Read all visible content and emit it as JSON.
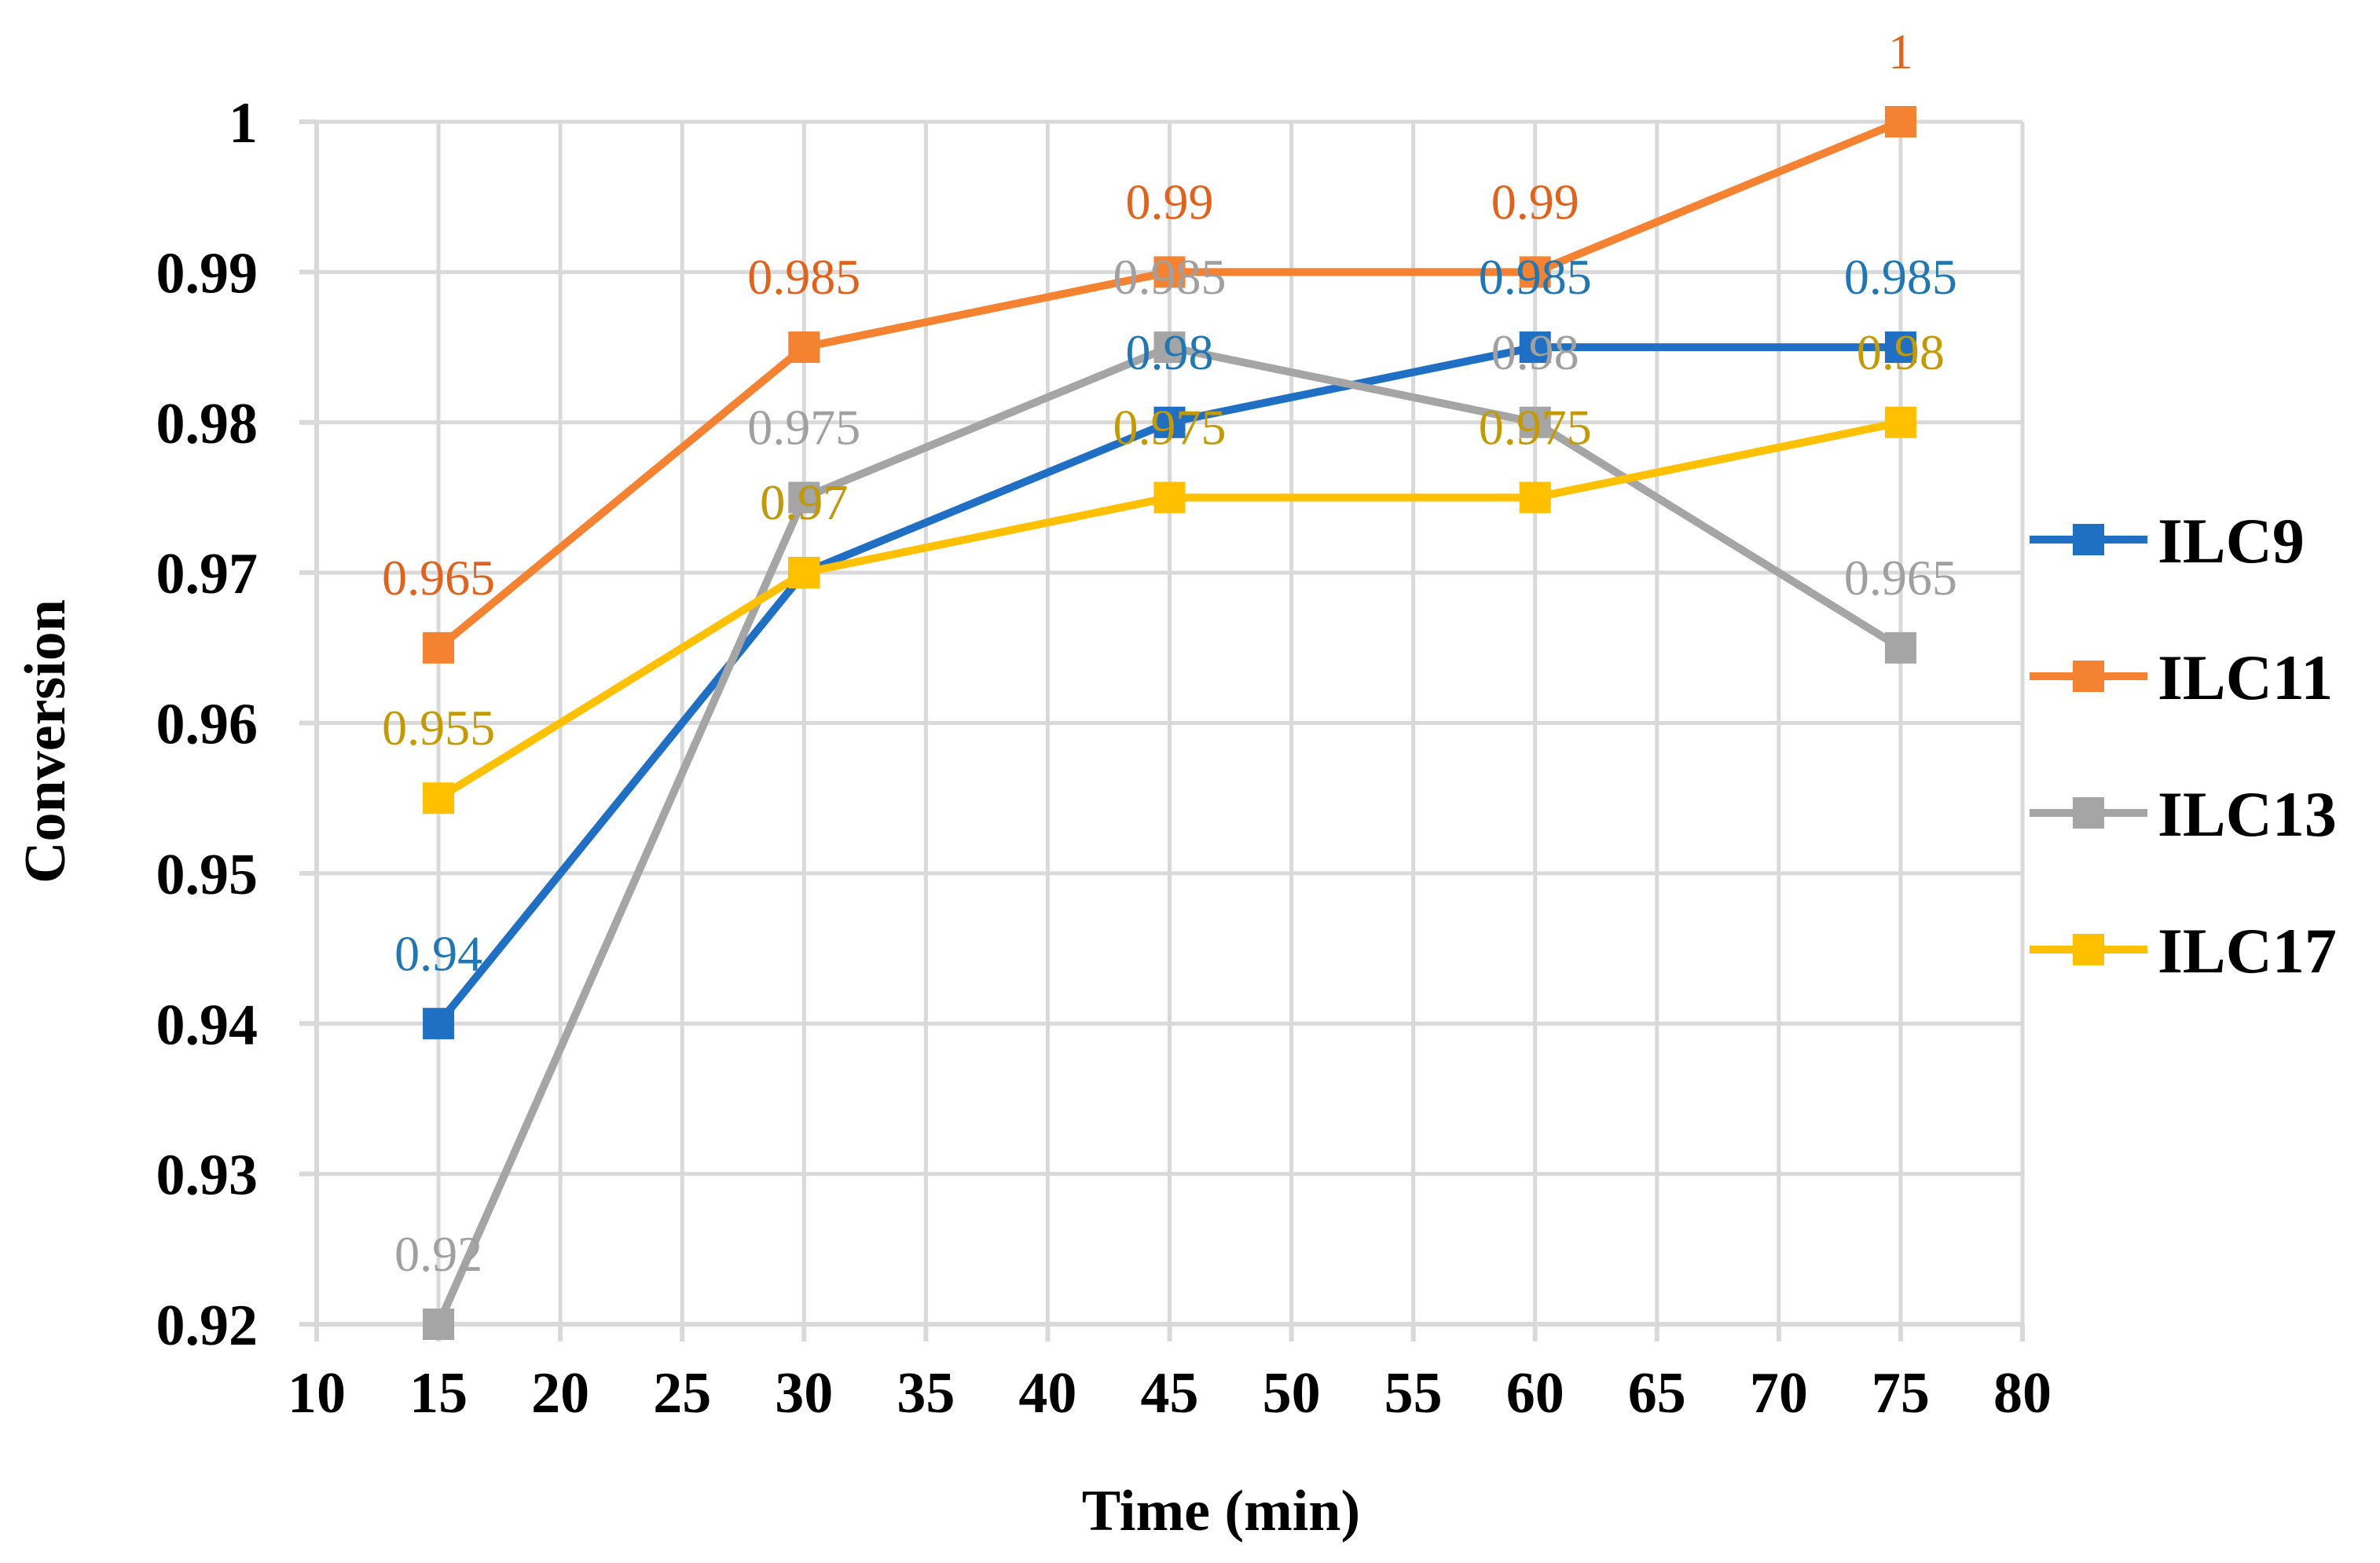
{
  "chart_data": {
    "type": "line",
    "title": "",
    "xlabel": "Time (min)",
    "ylabel": "Conversion",
    "xlim": [
      10,
      80
    ],
    "ylim": [
      0.92,
      1.0
    ],
    "xticks": [
      10,
      15,
      20,
      25,
      30,
      35,
      40,
      45,
      50,
      55,
      60,
      65,
      70,
      75,
      80
    ],
    "yticks": [
      "0.92",
      "0.93",
      "0.94",
      "0.95",
      "0.96",
      "0.97",
      "0.98",
      "0.99",
      "1"
    ],
    "grid": true,
    "legend_position": "right",
    "x": [
      15,
      30,
      45,
      60,
      75
    ],
    "series": [
      {
        "name": "ILC9",
        "color": "#1f6fc5",
        "label_color": "#1f77b4",
        "values": [
          0.94,
          0.97,
          0.98,
          0.985,
          0.985
        ],
        "labels": [
          "0.94",
          "0.97",
          "0.98",
          "0.985",
          "0.985"
        ]
      },
      {
        "name": "ILC11",
        "color": "#f58231",
        "label_color": "#e2621b",
        "values": [
          0.965,
          0.985,
          0.99,
          0.99,
          1.0
        ],
        "labels": [
          "0.965",
          "0.985",
          "0.99",
          "0.99",
          "1"
        ]
      },
      {
        "name": "ILC13",
        "color": "#a5a5a5",
        "label_color": "#a0a0a0",
        "values": [
          0.92,
          0.975,
          0.985,
          0.98,
          0.965
        ],
        "labels": [
          "0.92",
          "0.975",
          "0.985",
          "0.98",
          "0.965"
        ]
      },
      {
        "name": "ILC17",
        "color": "#ffc000",
        "label_color": "#c49a00",
        "values": [
          0.955,
          0.97,
          0.975,
          0.975,
          0.98
        ],
        "labels": [
          "0.955",
          "0.97",
          "0.975",
          "0.975",
          "0.98"
        ]
      }
    ]
  }
}
